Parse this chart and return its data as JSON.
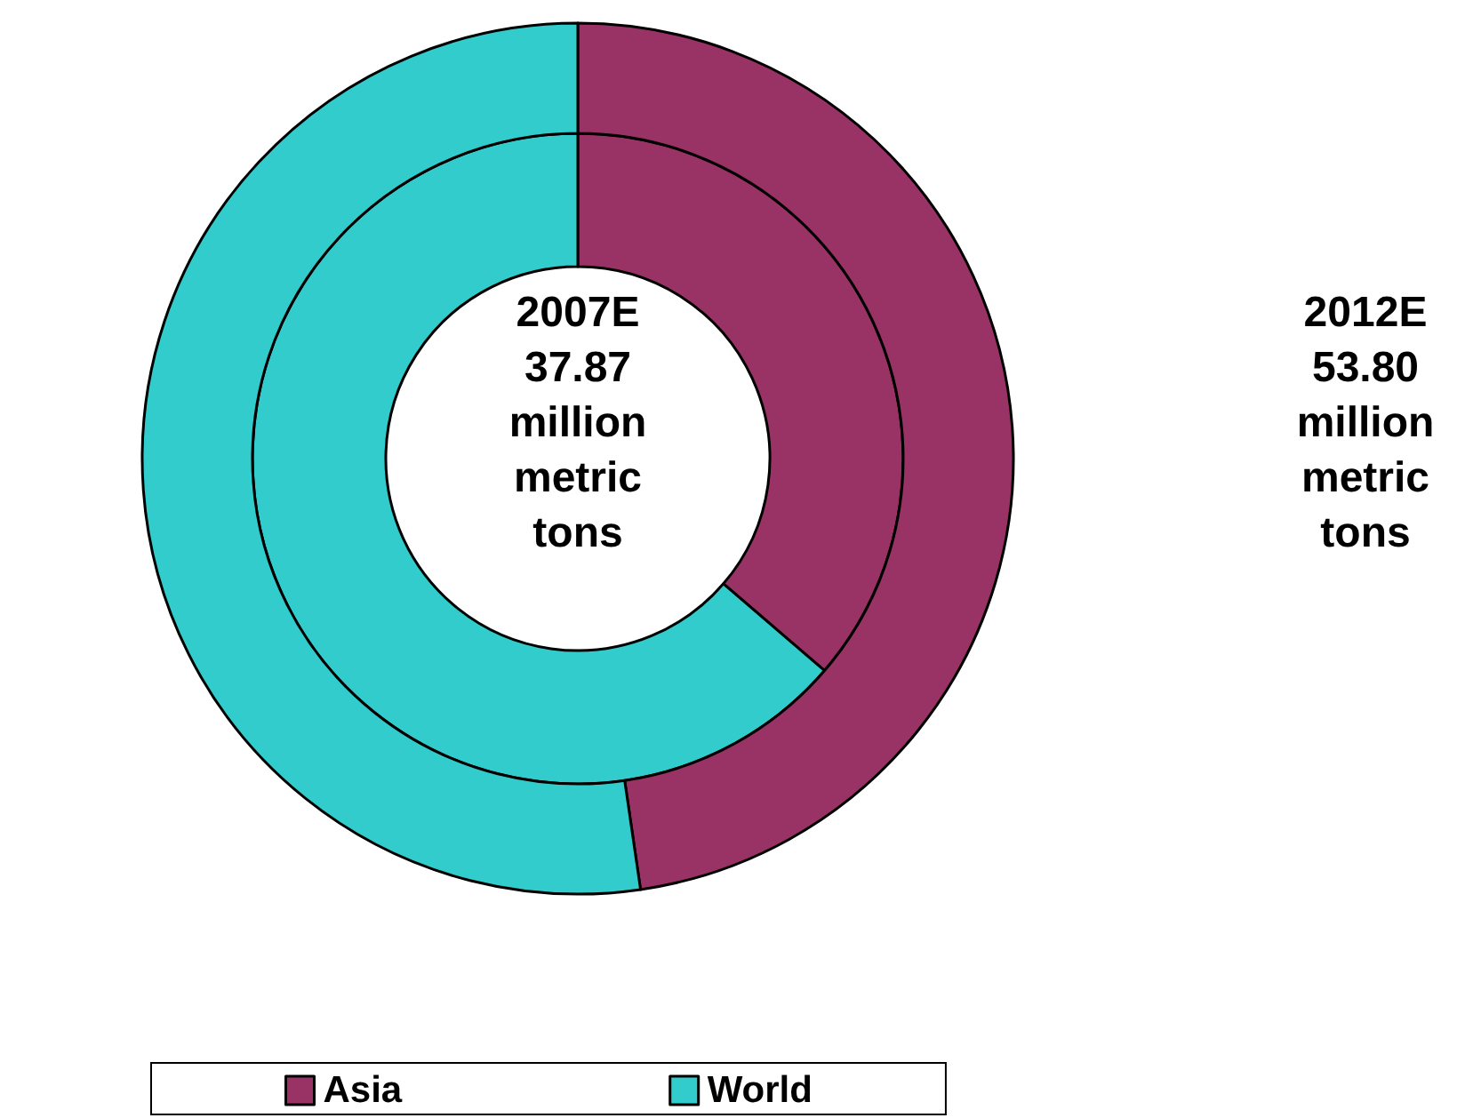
{
  "chart_data": {
    "type": "donut",
    "categories": [
      "Asia",
      "World"
    ],
    "colors": [
      "#993366",
      "#33cccc"
    ],
    "series": [
      {
        "values": [
          36.3,
          63.7
        ]
      },
      {
        "values": [
          47.7,
          52.3
        ]
      }
    ],
    "annotations": [
      "2007E 37.87 million metric tons",
      "2012E 53.80 million metric tons"
    ],
    "legend": "bottom"
  }
}
